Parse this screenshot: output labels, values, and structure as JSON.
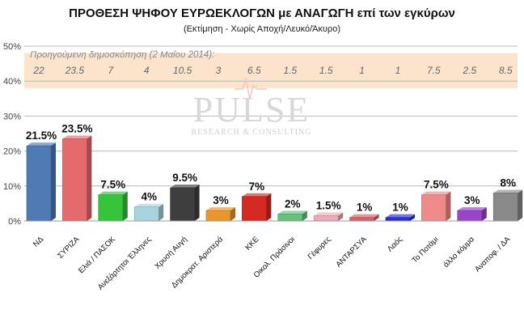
{
  "chart_data": {
    "type": "bar",
    "title": "ΠΡΟΘΕΣΗ ΨΗΦΟΥ ΕΥΡΩΕΚΛΟΓΩΝ με ΑΝΑΓΩΓΗ επί των εγκύρων",
    "subtitle": "(Εκτίμηση  -  Χωρίς Αποχή/Λευκό/Άκυρο)",
    "categories": [
      "ΝΔ",
      "ΣΥΡΙΖΑ",
      "Ελιά / ΠΑΣΟΚ",
      "Ανεξάρτητοι Έλληνες",
      "Χρυσή Αυγή",
      "Δημοκρατ. Αριστερά",
      "ΚΚΕ",
      "Οικολ. Πράσινοι",
      "Γέφυρες",
      "ΑΝΤΑΡΣΥΑ",
      "Λαός",
      "Το Ποτάμι",
      "άλλο κόμμα",
      "Αναποφ. / ΔΑ"
    ],
    "values": [
      21.5,
      23.5,
      7.5,
      4,
      9.5,
      3,
      7,
      2,
      1.5,
      1,
      1,
      7.5,
      3,
      8
    ],
    "value_labels": [
      "21.5%",
      "23.5%",
      "7.5%",
      "4%",
      "9.5%",
      "3%",
      "7%",
      "2%",
      "1.5%",
      "1%",
      "1%",
      "7.5%",
      "3%",
      "8%"
    ],
    "colors": [
      "#4f7bb5",
      "#e46a6e",
      "#36c43a",
      "#a9d4de",
      "#3e3e3e",
      "#e8962d",
      "#d42a22",
      "#66c27a",
      "#ecaab6",
      "#d95f68",
      "#2a2fd8",
      "#ef8a88",
      "#9a44c6",
      "#8a8a8a"
    ],
    "ylim": [
      0,
      50
    ],
    "yticks": [
      "0%",
      "10%",
      "20%",
      "30%",
      "40%",
      "50%"
    ],
    "previous_poll": {
      "label": "Προηγούμενη δημοσκόπηση (2 Μαΐου 2014):",
      "values": [
        "22",
        "23.5",
        "7",
        "4",
        "10.5",
        "3",
        "6.5",
        "1.5",
        "1.5",
        "1",
        "1",
        "7.5",
        "2.5",
        "8.5"
      ]
    },
    "grid": true,
    "legend": "none"
  },
  "watermark": {
    "main": "PULSE",
    "sub": "RESEARCH & CONSULTING"
  }
}
